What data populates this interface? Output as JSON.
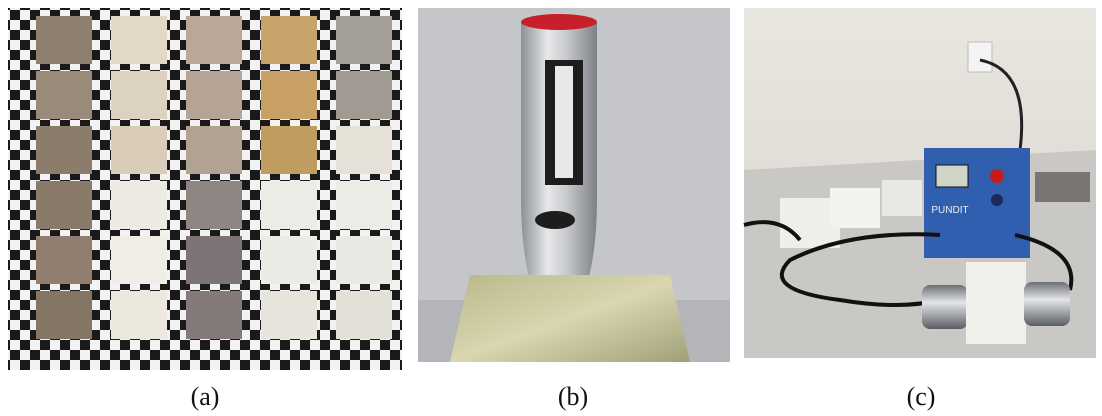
{
  "panels": [
    {
      "label": "(a)"
    },
    {
      "label": "(b)"
    },
    {
      "label": "(c)",
      "device_label": "PUNDIT"
    }
  ]
}
